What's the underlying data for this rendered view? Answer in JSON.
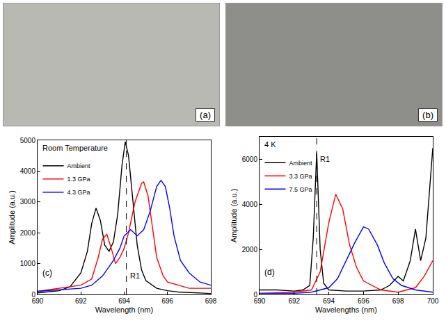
{
  "photos": [
    {
      "label": "(a)"
    },
    {
      "label": "(b)"
    }
  ],
  "chart_data": [
    {
      "type": "line",
      "x_label": "Wavelength (nm)",
      "y_label": "Amplitude (a.u.)",
      "annotations": [
        {
          "text": "Room Temperature"
        },
        {
          "text": "(c)"
        }
      ],
      "vlines": [
        {
          "x": 694.1,
          "text": "R1",
          "line_style": "dashed"
        }
      ],
      "xlim": [
        690,
        698
      ],
      "xticks": [
        690,
        692,
        694,
        696,
        698
      ],
      "ylim": [
        0,
        5000
      ],
      "yticks": [
        0,
        1000,
        2000,
        3000,
        4000,
        5000
      ],
      "legend": "upper left",
      "series": [
        {
          "name": "Ambient",
          "color": "#000000",
          "x": [
            690,
            690.5,
            691,
            691.5,
            692,
            692.3,
            692.5,
            692.7,
            692.9,
            693.1,
            693.3,
            693.5,
            693.7,
            693.9,
            694.05,
            694.2,
            694.4,
            694.6,
            694.8,
            695,
            695.5,
            696,
            696.5,
            697,
            698
          ],
          "values": [
            50,
            80,
            120,
            250,
            700,
            1400,
            2300,
            2800,
            2400,
            1600,
            1400,
            1700,
            2600,
            4200,
            4950,
            4500,
            3000,
            1600,
            800,
            450,
            200,
            120,
            80,
            60,
            30
          ]
        },
        {
          "name": "1.3 GPa",
          "color": "#ff0000",
          "x": [
            690,
            690.5,
            691,
            691.5,
            692,
            692.5,
            692.8,
            693,
            693.2,
            693.4,
            693.6,
            693.8,
            694,
            694.2,
            694.5,
            694.8,
            694.9,
            695.1,
            695.3,
            695.5,
            695.8,
            696,
            696.5,
            697,
            698
          ],
          "values": [
            100,
            150,
            200,
            250,
            300,
            500,
            1200,
            1800,
            1950,
            1500,
            1000,
            1200,
            1500,
            2000,
            3000,
            3600,
            3650,
            3200,
            2200,
            1200,
            600,
            400,
            300,
            200,
            200
          ]
        },
        {
          "name": "4.3 GPa",
          "color": "#0000ff",
          "x": [
            690,
            691,
            692,
            692.5,
            693,
            693.5,
            693.8,
            694,
            694.3,
            694.6,
            694.9,
            695.2,
            695.5,
            695.7,
            695.9,
            696.1,
            696.3,
            696.6,
            697,
            697.5,
            698
          ],
          "values": [
            100,
            150,
            200,
            300,
            600,
            1100,
            1500,
            1900,
            2100,
            1900,
            2100,
            2700,
            3500,
            3700,
            3500,
            2800,
            1900,
            1100,
            700,
            400,
            300
          ]
        }
      ]
    },
    {
      "type": "line",
      "x_label": "Wavelengths (nm)",
      "y_label": "Amplitude (a.u.)",
      "annotations": [
        {
          "text": "4 K"
        },
        {
          "text": "(d)"
        }
      ],
      "vlines": [
        {
          "x": 693.3,
          "text": "R1",
          "line_style": "dashed"
        }
      ],
      "xlim": [
        690,
        700
      ],
      "xticks": [
        690,
        692,
        694,
        696,
        698,
        700
      ],
      "ylim": [
        0,
        7000
      ],
      "yticks": [
        0,
        2000,
        4000,
        6000
      ],
      "legend": "upper left",
      "series": [
        {
          "name": "Ambient",
          "color": "#000000",
          "x": [
            690,
            691,
            692,
            692.5,
            692.9,
            693.1,
            693.3,
            693.5,
            693.7,
            694,
            695,
            696,
            697,
            697.5,
            698,
            698.3,
            698.7,
            699,
            699.3,
            699.6,
            700
          ],
          "values": [
            200,
            200,
            150,
            200,
            400,
            2500,
            6300,
            2000,
            500,
            200,
            150,
            150,
            200,
            400,
            800,
            600,
            1500,
            2900,
            1500,
            2500,
            6500
          ]
        },
        {
          "name": "3.3 GPa",
          "color": "#ff0000",
          "x": [
            690,
            692,
            693,
            693.5,
            694,
            694.4,
            694.8,
            695.2,
            695.6,
            696,
            697,
            698,
            699,
            699.5,
            700
          ],
          "values": [
            50,
            100,
            200,
            1000,
            3200,
            4450,
            3800,
            2200,
            1200,
            600,
            200,
            100,
            300,
            800,
            1500
          ]
        },
        {
          "name": "7.5 GPa",
          "color": "#0000ff",
          "x": [
            690,
            692,
            693,
            694,
            694.5,
            695,
            695.5,
            696,
            696.3,
            696.8,
            697.2,
            697.7,
            698.2,
            699,
            700
          ],
          "values": [
            50,
            50,
            100,
            300,
            700,
            1500,
            2300,
            3000,
            2900,
            2200,
            1400,
            700,
            400,
            200,
            100
          ]
        }
      ]
    }
  ]
}
